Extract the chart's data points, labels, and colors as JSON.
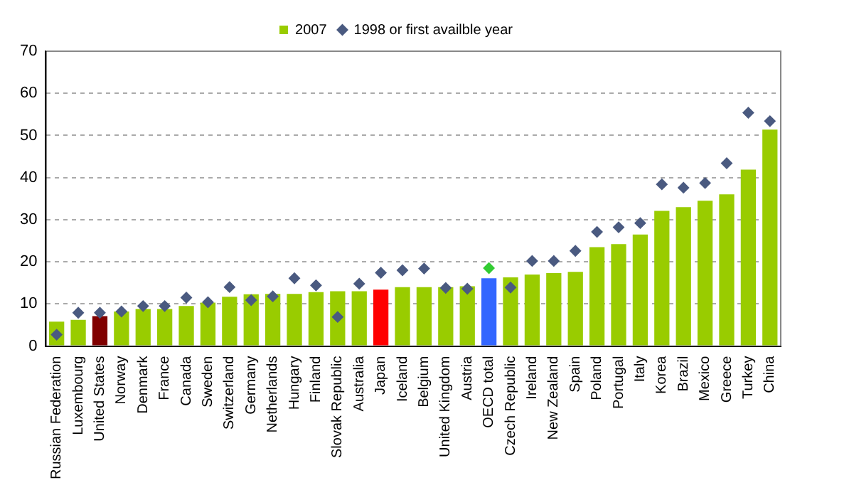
{
  "chart_data": {
    "type": "bar",
    "categories": [
      "Russian Federation",
      "Luxembourg",
      "United States",
      "Norway",
      "Denmark",
      "France",
      "Canada",
      "Sweden",
      "Switzerland",
      "Germany",
      "Netherlands",
      "Hungary",
      "Finland",
      "Slovak Republic",
      "Australia",
      "Japan",
      "Iceland",
      "Belgium",
      "United Kingdom",
      "Austria",
      "OECD total",
      "Czech Republic",
      "Ireland",
      "New Zealand",
      "Spain",
      "Poland",
      "Portugal",
      "Italy",
      "Korea",
      "Brazil",
      "Mexico",
      "Greece",
      "Turkey",
      "China"
    ],
    "series": [
      {
        "name": "2007",
        "color": "#99cc00",
        "colors": [
          "#99cc00",
          "#99cc00",
          "#800000",
          "#99cc00",
          "#99cc00",
          "#99cc00",
          "#99cc00",
          "#99cc00",
          "#99cc00",
          "#99cc00",
          "#99cc00",
          "#99cc00",
          "#99cc00",
          "#99cc00",
          "#99cc00",
          "#ff0000",
          "#99cc00",
          "#99cc00",
          "#99cc00",
          "#99cc00",
          "#3366ff",
          "#99cc00",
          "#99cc00",
          "#99cc00",
          "#99cc00",
          "#99cc00",
          "#99cc00",
          "#99cc00",
          "#99cc00",
          "#99cc00",
          "#99cc00",
          "#99cc00",
          "#99cc00",
          "#99cc00"
        ],
        "values": [
          5.8,
          6.2,
          7.1,
          8.2,
          8.8,
          8.8,
          9.5,
          10.3,
          11.7,
          12.3,
          12.4,
          12.4,
          12.8,
          13.0,
          13.0,
          13.4,
          14.0,
          14.0,
          14.0,
          14.2,
          16.1,
          16.3,
          17.0,
          17.3,
          17.6,
          23.5,
          24.2,
          26.5,
          32.1,
          33.0,
          34.5,
          36.0,
          41.9,
          51.4
        ]
      },
      {
        "name": "1998 or first availble year",
        "type": "scatter",
        "marker": "diamond",
        "color": "#4a5a80",
        "colors": [
          "#4a5a80",
          "#4a5a80",
          "#4a5a80",
          "#4a5a80",
          "#4a5a80",
          "#4a5a80",
          "#4a5a80",
          "#4a5a80",
          "#4a5a80",
          "#4a5a80",
          "#4a5a80",
          "#4a5a80",
          "#4a5a80",
          "#4a5a80",
          "#4a5a80",
          "#4a5a80",
          "#4a5a80",
          "#4a5a80",
          "#4a5a80",
          "#4a5a80",
          "#33cc33",
          "#4a5a80",
          "#4a5a80",
          "#4a5a80",
          "#4a5a80",
          "#4a5a80",
          "#4a5a80",
          "#4a5a80",
          "#4a5a80",
          "#4a5a80",
          "#4a5a80",
          "#4a5a80",
          "#4a5a80",
          "#4a5a80"
        ],
        "x": [
          "Russian Federation",
          "Luxembourg",
          "United States",
          "Norway",
          "Denmark",
          "France",
          "Canada",
          "Sweden",
          "Switzerland",
          "Germany",
          "Netherlands",
          "Hungary",
          "Finland",
          "Slovak Republic",
          "Australia",
          "Japan",
          "Iceland",
          "Belgium",
          "United Kingdom",
          "Austria",
          "OECD total",
          "Czech Republic",
          "Ireland",
          "New Zealand",
          "Spain",
          "Poland",
          "Portugal",
          "Italy",
          "Korea",
          "Brazil",
          "Mexico",
          "Greece",
          "Turkey",
          "China"
        ],
        "values": [
          2.7,
          7.9,
          7.9,
          8.2,
          9.5,
          9.5,
          11.5,
          10.4,
          14.0,
          10.9,
          11.8,
          16.1,
          14.4,
          6.9,
          14.8,
          17.4,
          18.0,
          18.4,
          13.8,
          13.6,
          18.5,
          13.9,
          20.2,
          20.2,
          22.6,
          27.1,
          28.2,
          29.2,
          38.4,
          37.6,
          38.7,
          43.4,
          55.4,
          53.4
        ]
      }
    ],
    "ylim": [
      0,
      70
    ],
    "yticks": [
      0,
      10,
      20,
      30,
      40,
      50,
      60,
      70
    ],
    "grid": "y",
    "legend": "top"
  }
}
